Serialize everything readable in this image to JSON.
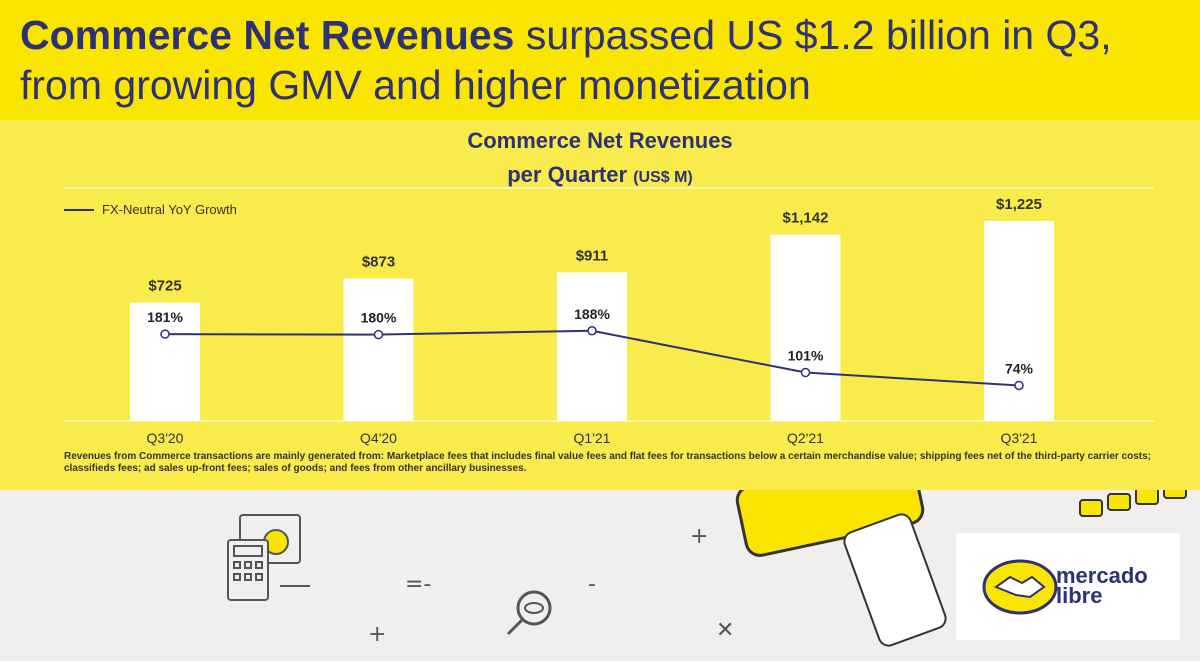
{
  "headline": {
    "bold": "Commerce Net Revenues",
    "rest": " surpassed US $1.2 billion in Q3, from growing GMV and higher monetization"
  },
  "chart_title": {
    "line1": "Commerce Net Revenues",
    "line2": "per Quarter",
    "unit": "(US$ M)"
  },
  "legend": {
    "label": "FX-Neutral YoY Growth"
  },
  "chart_data": {
    "type": "bar",
    "title": "Commerce Net Revenues per Quarter (US$ M)",
    "categories": [
      "Q3'20",
      "Q4'20",
      "Q1'21",
      "Q2'21",
      "Q3'21"
    ],
    "series": [
      {
        "name": "Commerce Net Revenues (US$ M)",
        "type": "bar",
        "values": [
          725,
          873,
          911,
          1142,
          1225
        ],
        "labels": [
          "$725",
          "$873",
          "$911",
          "$1,142",
          "$1,225"
        ]
      },
      {
        "name": "FX-Neutral YoY Growth",
        "type": "line",
        "values": [
          181,
          180,
          188,
          101,
          74
        ],
        "labels": [
          "181%",
          "180%",
          "188%",
          "101%",
          "74%"
        ]
      }
    ],
    "xlabel": "",
    "ylabel": "",
    "ylim": [
      0,
      1225
    ],
    "growth_ylim": [
      0,
      500
    ],
    "grid": false,
    "legend_position": "top-left"
  },
  "footnote": "Revenues from Commerce transactions are mainly generated from: Marketplace fees that includes final value fees and flat fees for transactions below a certain merchandise value; shipping fees net of the third-party carrier costs; classifieds fees; ad sales up-front fees; sales of goods; and fees from other ancillary businesses.",
  "logo": {
    "line1": "mercado",
    "line2": "libre"
  },
  "colors": {
    "yellow": "#fae500",
    "panel": "#faeb4d",
    "navy": "#2d3277",
    "bar": "#ffffff"
  }
}
